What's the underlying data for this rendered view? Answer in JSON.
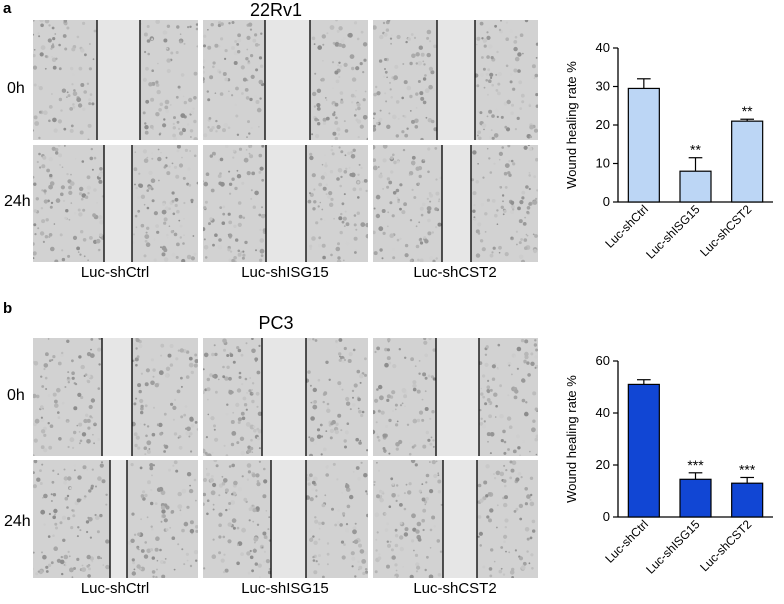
{
  "panel_a": {
    "letter": "a",
    "title": "22Rv1",
    "row_labels": [
      "0h",
      "24h"
    ],
    "col_labels": [
      "Luc-shCtrl",
      "Luc-shISG15",
      "Luc-shCST2"
    ]
  },
  "panel_b": {
    "letter": "b",
    "title": "PC3",
    "row_labels": [
      "0h",
      "24h"
    ],
    "col_labels": [
      "Luc-shCtrl",
      "Luc-shISG15",
      "Luc-shCST2"
    ]
  },
  "colors": {
    "bar_a": "#bcd6f5",
    "bar_b": "#1146d4",
    "axis": "#000000",
    "micro_bg": "#d2d2d2",
    "gap_bg": "#e6e6e6"
  },
  "chart_data": [
    {
      "type": "bar",
      "categories": [
        "Luc-shCtrl",
        "Luc-shISG15",
        "Luc-shCST2"
      ],
      "series": [
        {
          "values": [
            29.5,
            8,
            21
          ]
        }
      ],
      "errors": [
        2.5,
        3.5,
        0.5
      ],
      "significance": [
        "",
        "**",
        "**"
      ],
      "ylabel": "Wound healing rate %",
      "yticks": [
        0,
        10,
        20,
        30,
        40
      ],
      "ylim": [
        0,
        40
      ],
      "bar_color": "#bcd6f5"
    },
    {
      "type": "bar",
      "categories": [
        "Luc-shCtrl",
        "Luc-shISG15",
        "Luc-shCST2"
      ],
      "series": [
        {
          "values": [
            51,
            14.5,
            13
          ]
        }
      ],
      "errors": [
        1.8,
        2.5,
        2.2
      ],
      "significance": [
        "",
        "***",
        "***"
      ],
      "ylabel": "Wound healing rate %",
      "yticks": [
        0,
        20,
        40,
        60
      ],
      "ylim": [
        0,
        60
      ],
      "bar_color": "#1146d4"
    }
  ]
}
